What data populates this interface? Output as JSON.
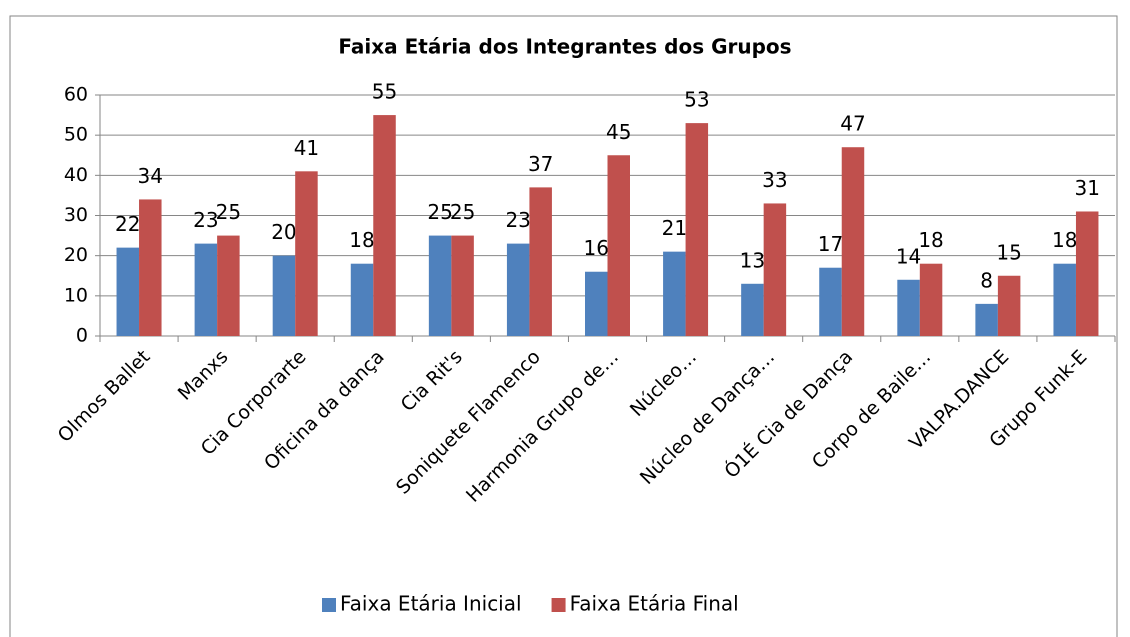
{
  "chart_data": {
    "type": "bar",
    "title": "Faixa Etária dos Integrantes dos Grupos",
    "categories": [
      "Olmos Ballet",
      "Manxs",
      "Cia Corporarte",
      "Oficina da dança",
      "Cia Rit's",
      "Soniquete Flamenco",
      "Harmonia Grupo de…",
      "Núcleo…",
      "Núcleo de Dança…",
      "Ó1É Cia de Dança",
      "Corpo de Baile…",
      "VALPA.DANCE",
      "Grupo Funk-E"
    ],
    "series": [
      {
        "name": "Faixa Etária Inicial",
        "color": "#4f81bd",
        "values": [
          22,
          23,
          20,
          18,
          25,
          23,
          16,
          21,
          13,
          17,
          14,
          8,
          18
        ]
      },
      {
        "name": "Faixa Etária Final",
        "color": "#c0504d",
        "values": [
          34,
          25,
          41,
          55,
          25,
          37,
          45,
          53,
          33,
          47,
          18,
          15,
          31
        ]
      }
    ],
    "ylim": [
      0,
      60
    ],
    "yticks": [
      0,
      10,
      20,
      30,
      40,
      50,
      60
    ],
    "grid": true,
    "legend": "bottom"
  }
}
